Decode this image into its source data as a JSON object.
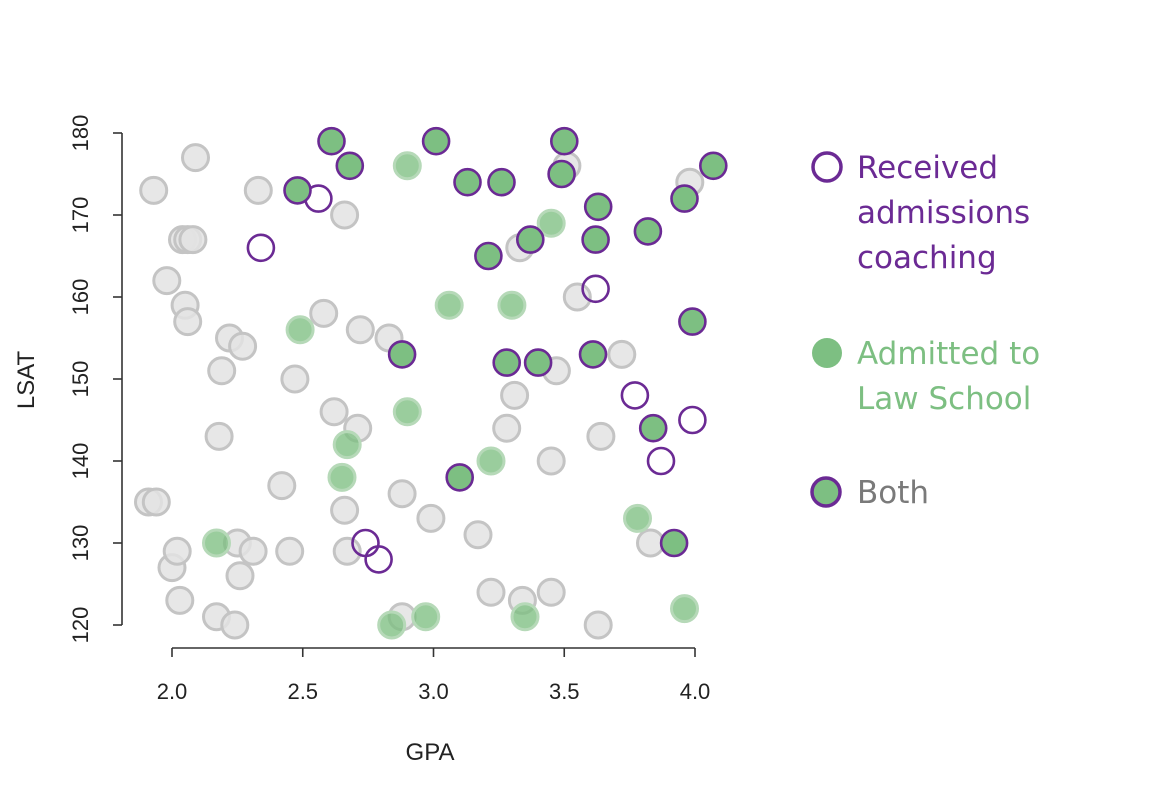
{
  "chart_data": {
    "type": "scatter",
    "title": "",
    "xlabel": "GPA",
    "ylabel": "LSAT",
    "xlim": [
      1.83,
      4.1
    ],
    "ylim": [
      118,
      181
    ],
    "xticks": [
      "2.0",
      "2.5",
      "3.0",
      "3.5",
      "4.0"
    ],
    "yticks": [
      "120",
      "130",
      "140",
      "150",
      "160",
      "170",
      "180"
    ],
    "grid": false,
    "legend_position": "right",
    "colors": {
      "neither_fill": "#e3e3e3",
      "neither_stroke": "#c4c4c4",
      "admitted_fill": "#7dbf82",
      "admitted_fill_dim": "#b6d9b8",
      "coaching_stroke": "#6b2a94",
      "legend_both_text": "#7a7a7a"
    },
    "legend": {
      "coaching": [
        "Received",
        "admissions",
        "coaching"
      ],
      "admitted": [
        "Admitted to",
        "Law School"
      ],
      "both": [
        "Both"
      ]
    },
    "series": [
      {
        "name": "Neither",
        "points": [
          [
            1.91,
            135
          ],
          [
            1.94,
            135
          ],
          [
            1.93,
            173
          ],
          [
            1.98,
            162
          ],
          [
            2.0,
            127
          ],
          [
            2.02,
            129
          ],
          [
            2.03,
            123
          ],
          [
            2.04,
            167
          ],
          [
            2.05,
            159
          ],
          [
            2.06,
            157
          ],
          [
            2.06,
            167
          ],
          [
            2.08,
            167
          ],
          [
            2.09,
            177
          ],
          [
            2.17,
            121
          ],
          [
            2.18,
            143
          ],
          [
            2.19,
            151
          ],
          [
            2.22,
            155
          ],
          [
            2.24,
            120
          ],
          [
            2.25,
            130
          ],
          [
            2.26,
            126
          ],
          [
            2.27,
            154
          ],
          [
            2.31,
            129
          ],
          [
            2.33,
            173
          ],
          [
            2.42,
            137
          ],
          [
            2.45,
            129
          ],
          [
            2.47,
            150
          ],
          [
            2.58,
            158
          ],
          [
            2.62,
            146
          ],
          [
            2.66,
            134
          ],
          [
            2.67,
            129
          ],
          [
            2.66,
            170
          ],
          [
            2.71,
            144
          ],
          [
            2.72,
            156
          ],
          [
            2.83,
            155
          ],
          [
            2.88,
            121
          ],
          [
            2.88,
            136
          ],
          [
            2.99,
            133
          ],
          [
            3.17,
            131
          ],
          [
            3.22,
            124
          ],
          [
            3.28,
            144
          ],
          [
            3.31,
            148
          ],
          [
            3.33,
            166
          ],
          [
            3.34,
            123
          ],
          [
            3.45,
            140
          ],
          [
            3.45,
            124
          ],
          [
            3.47,
            151
          ],
          [
            3.51,
            176
          ],
          [
            3.55,
            160
          ],
          [
            3.63,
            120
          ],
          [
            3.64,
            143
          ],
          [
            3.72,
            153
          ],
          [
            3.83,
            130
          ],
          [
            3.98,
            174
          ]
        ]
      },
      {
        "name": "Admitted",
        "points": [
          [
            2.17,
            130
          ],
          [
            2.49,
            156
          ],
          [
            2.65,
            138
          ],
          [
            2.67,
            142
          ],
          [
            2.9,
            176
          ],
          [
            2.9,
            146
          ],
          [
            2.84,
            120
          ],
          [
            2.97,
            121
          ],
          [
            3.06,
            159
          ],
          [
            3.22,
            140
          ],
          [
            3.3,
            159
          ],
          [
            3.35,
            121
          ],
          [
            3.45,
            169
          ],
          [
            3.78,
            133
          ],
          [
            3.96,
            122
          ]
        ]
      },
      {
        "name": "Coaching",
        "points": [
          [
            2.34,
            166
          ],
          [
            2.56,
            172
          ],
          [
            2.74,
            130
          ],
          [
            2.79,
            128
          ],
          [
            3.62,
            161
          ],
          [
            3.77,
            148
          ],
          [
            3.87,
            140
          ],
          [
            3.99,
            145
          ]
        ]
      },
      {
        "name": "Both",
        "points": [
          [
            2.48,
            173
          ],
          [
            2.61,
            179
          ],
          [
            2.68,
            176
          ],
          [
            2.88,
            153
          ],
          [
            3.01,
            179
          ],
          [
            3.1,
            138
          ],
          [
            3.13,
            174
          ],
          [
            3.21,
            165
          ],
          [
            3.26,
            174
          ],
          [
            3.28,
            152
          ],
          [
            3.37,
            167
          ],
          [
            3.4,
            152
          ],
          [
            3.49,
            175
          ],
          [
            3.5,
            179
          ],
          [
            3.61,
            153
          ],
          [
            3.62,
            167
          ],
          [
            3.63,
            171
          ],
          [
            3.82,
            168
          ],
          [
            3.84,
            144
          ],
          [
            3.92,
            130
          ],
          [
            3.96,
            172
          ],
          [
            3.99,
            157
          ],
          [
            4.07,
            176
          ]
        ]
      }
    ]
  }
}
